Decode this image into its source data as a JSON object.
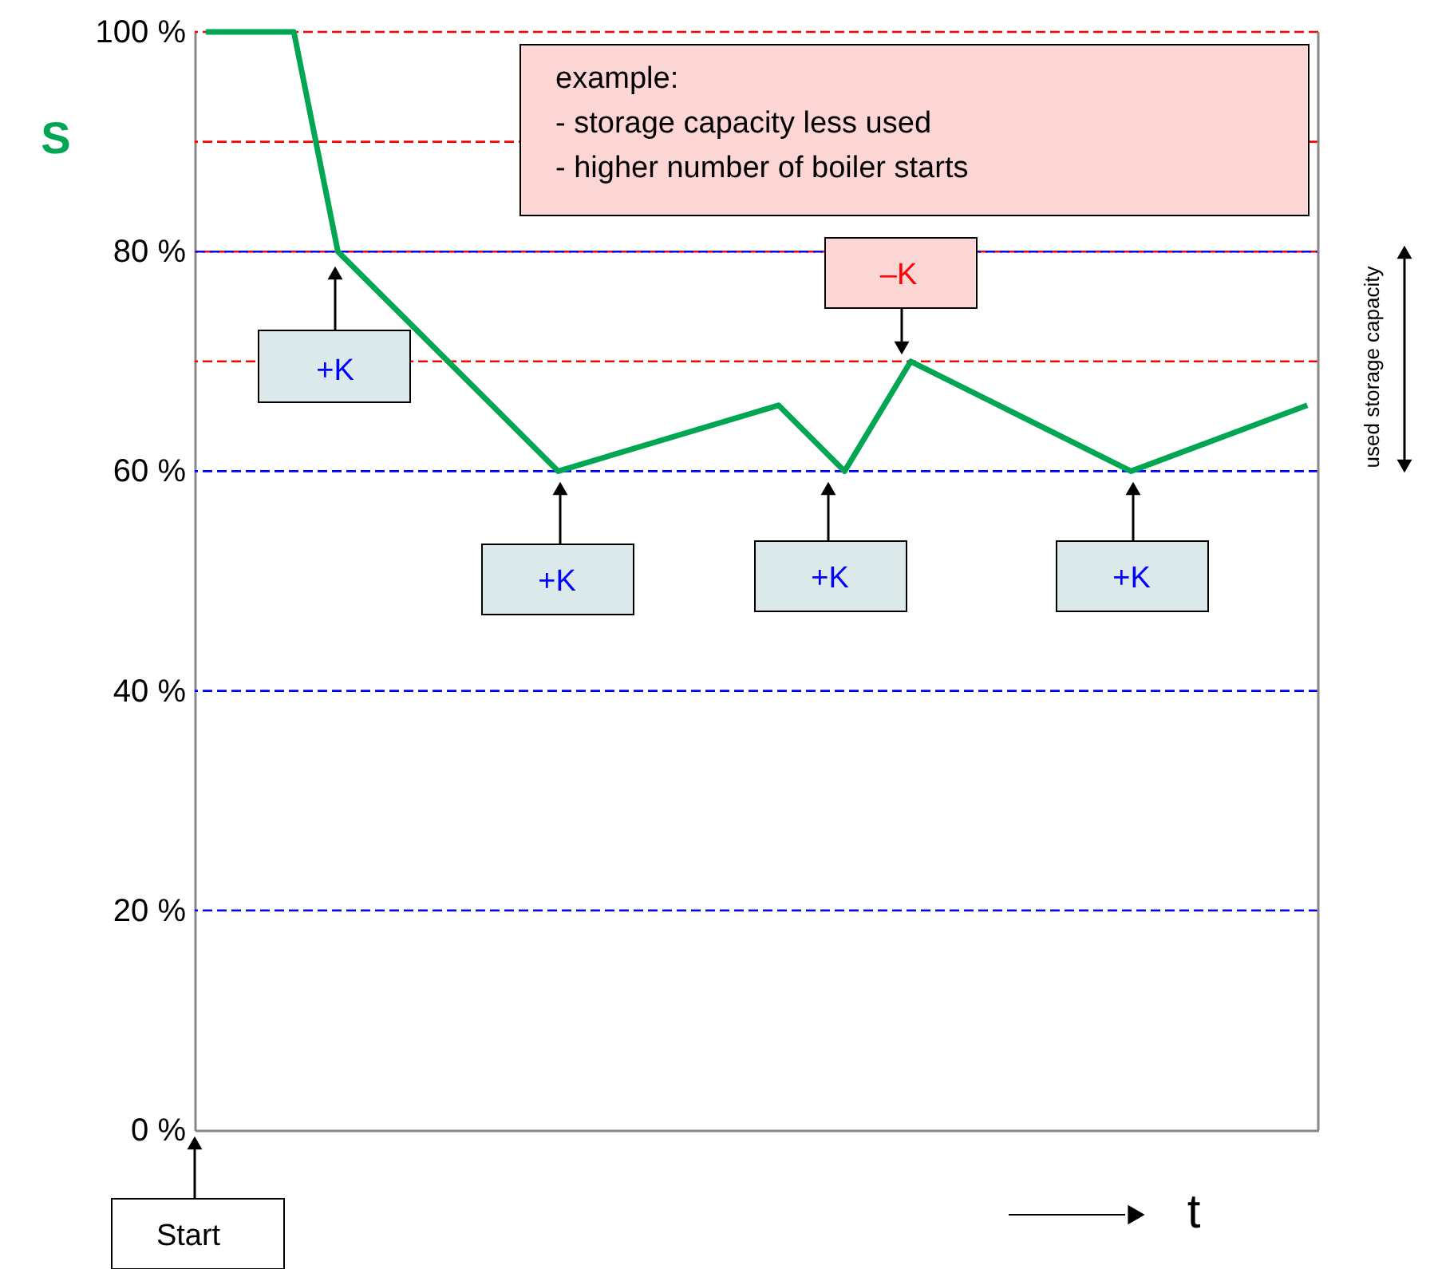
{
  "chart_data": {
    "type": "line",
    "xlabel": "t",
    "ylabel": "S",
    "categories": [
      null,
      null,
      null,
      null,
      null,
      null,
      null,
      null,
      null,
      null,
      null,
      null,
      null,
      null,
      null,
      null,
      null,
      null,
      null,
      null,
      null,
      null,
      null,
      null,
      null,
      null,
      null,
      null,
      null,
      null,
      null,
      null,
      null,
      null,
      null,
      null,
      null,
      null,
      null,
      null,
      null,
      null,
      null,
      null,
      null,
      null,
      null,
      null,
      null,
      null,
      null
    ],
    "series": [
      {
        "color": "#00a651",
        "values": [
          100,
          null,
          null,
          null,
          100,
          null,
          80,
          null,
          null,
          null,
          null,
          null,
          null,
          null,
          null,
          null,
          60,
          null,
          null,
          null,
          null,
          null,
          null,
          null,
          null,
          null,
          66,
          null,
          null,
          60,
          null,
          null,
          70,
          null,
          null,
          null,
          null,
          null,
          null,
          null,
          null,
          null,
          60,
          null,
          null,
          null,
          null,
          null,
          null,
          null,
          66
        ]
      }
    ],
    "ylim": [
      0,
      100
    ],
    "yticks": [
      {
        "value": 0,
        "label": "0 %"
      },
      {
        "value": 20,
        "label": "20 %"
      },
      {
        "value": 40,
        "label": "40 %"
      },
      {
        "value": 60,
        "label": "60 %"
      },
      {
        "value": 80,
        "label": "80 %"
      },
      {
        "value": 100,
        "label": "100 %"
      }
    ],
    "tick_labels": "y",
    "ref_lines": [
      {
        "axis": "y",
        "value": 100,
        "color": "#ff0000",
        "line_style": "dashed"
      },
      {
        "axis": "y",
        "value": 90,
        "color": "#ff0000",
        "line_style": "dashed"
      },
      {
        "axis": "y",
        "value": 80,
        "color": "#ff0000",
        "line_style": "dashed"
      },
      {
        "axis": "y",
        "value": 80,
        "color": "#0000ff",
        "line_style": "dashed"
      },
      {
        "axis": "y",
        "value": 70,
        "color": "#ff0000",
        "line_style": "dashed"
      },
      {
        "axis": "y",
        "value": 60,
        "color": "#0000ff",
        "line_style": "dashed"
      },
      {
        "axis": "y",
        "value": 40,
        "color": "#0000ff",
        "line_style": "dashed"
      },
      {
        "axis": "y",
        "value": 20,
        "color": "#0000ff",
        "line_style": "dashed"
      }
    ],
    "annotations": [
      "example:\n- storage capacity less used\n- higher number of boiler starts",
      "+K",
      "+K",
      "+K",
      "+K",
      "–K",
      "Start",
      "used storage capacity"
    ]
  }
}
